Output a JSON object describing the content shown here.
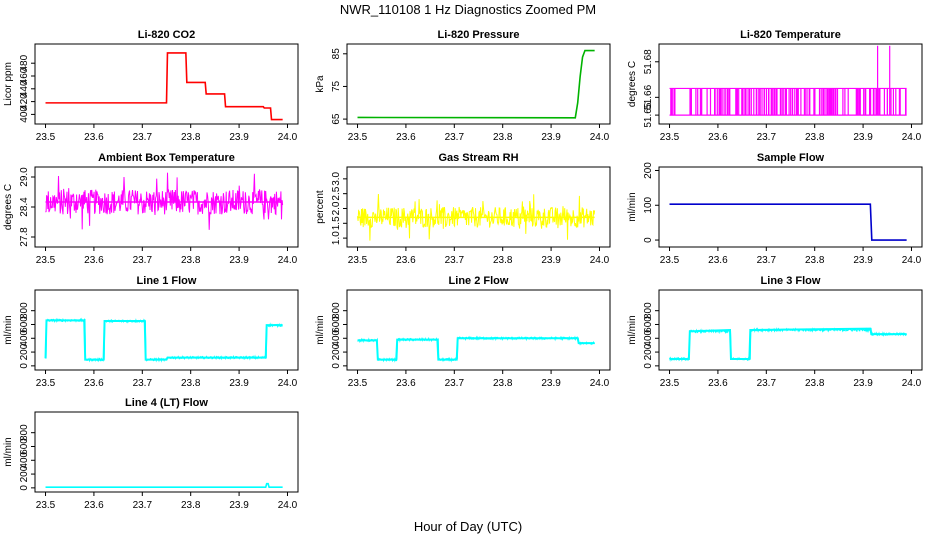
{
  "figure": {
    "title": "NWR_110108  1 Hz Diagnostics Zoomed PM",
    "xlabel": "Hour of Day (UTC)"
  },
  "chart_data": [
    {
      "type": "line",
      "title": "Li-820 CO2",
      "ylabel": "Licor ppm",
      "color": "#ff0000",
      "xlim": [
        23.5,
        24.0
      ],
      "xticks": [
        "23.5",
        "23.6",
        "23.7",
        "23.8",
        "23.9",
        "24.0"
      ],
      "ylim": [
        385,
        510
      ],
      "yticks": [
        "400",
        "420",
        "440",
        "460",
        "480"
      ],
      "x": [
        23.5,
        23.75,
        23.752,
        23.79,
        23.792,
        23.83,
        23.832,
        23.87,
        23.872,
        23.95,
        23.952,
        23.965,
        23.967,
        23.99
      ],
      "values": [
        418,
        418,
        496,
        496,
        450,
        450,
        432,
        432,
        412,
        412,
        410,
        410,
        392,
        392
      ]
    },
    {
      "type": "line",
      "title": "Li-820 Pressure",
      "ylabel": "kPa",
      "color": "#00b300",
      "xlim": [
        23.5,
        24.0
      ],
      "xticks": [
        "23.5",
        "23.6",
        "23.7",
        "23.8",
        "23.9",
        "24.0"
      ],
      "ylim": [
        63.5,
        88
      ],
      "yticks": [
        "65",
        "75",
        "85"
      ],
      "x": [
        23.5,
        23.95,
        23.955,
        23.96,
        23.965,
        23.97,
        23.99
      ],
      "values": [
        65.5,
        65.4,
        70,
        78,
        84,
        86,
        86
      ]
    },
    {
      "type": "line",
      "title": "Li-820 Temperature",
      "ylabel": "degrees C",
      "color": "#ff00ff",
      "xlim": [
        23.5,
        24.0
      ],
      "xticks": [
        "23.5",
        "23.6",
        "23.7",
        "23.8",
        "23.9",
        "24.0"
      ],
      "ylim": [
        51.645,
        51.69
      ],
      "yticks": [
        "51.65",
        "51.66",
        "51.68"
      ],
      "x": [
        23.5,
        23.99
      ],
      "values": [
        51.665,
        51.665
      ]
    },
    {
      "type": "line",
      "title": "Ambient Box Temperature",
      "ylabel": "degrees C",
      "color": "#ff00ff",
      "xlim": [
        23.5,
        24.0
      ],
      "xticks": [
        "23.5",
        "23.6",
        "23.7",
        "23.8",
        "23.9",
        "24.0"
      ],
      "ylim": [
        27.6,
        29.2
      ],
      "yticks": [
        "27.8",
        "28.4",
        "29.0"
      ],
      "x": [
        23.5,
        23.99
      ],
      "values": [
        28.5,
        28.5
      ]
    },
    {
      "type": "line",
      "title": "Gas Stream RH",
      "ylabel": "percent",
      "color": "#ffff00",
      "xlim": [
        23.5,
        24.0
      ],
      "xticks": [
        "23.5",
        "23.6",
        "23.7",
        "23.8",
        "23.9",
        "24.0"
      ],
      "ylim": [
        0.7,
        3.4
      ],
      "yticks": [
        "1.0",
        "1.5",
        "2.0",
        "2.5",
        "3.0"
      ],
      "x": [
        23.5,
        23.99
      ],
      "values": [
        1.7,
        1.7
      ]
    },
    {
      "type": "line",
      "title": "Sample Flow",
      "ylabel": "ml/min",
      "color": "#0000cc",
      "xlim": [
        23.5,
        24.0
      ],
      "xticks": [
        "23.5",
        "23.6",
        "23.7",
        "23.8",
        "23.9",
        "24.0"
      ],
      "ylim": [
        -20,
        210
      ],
      "yticks": [
        "0",
        "100",
        "200"
      ],
      "x": [
        23.5,
        23.915,
        23.918,
        23.99
      ],
      "values": [
        103,
        103,
        0,
        0
      ]
    },
    {
      "type": "line",
      "title": "Line 1 Flow",
      "ylabel": "ml/min",
      "color": "#00ffff",
      "xlim": [
        23.5,
        24.0
      ],
      "xticks": [
        "23.5",
        "23.6",
        "23.7",
        "23.8",
        "23.9",
        "24.0"
      ],
      "ylim": [
        -60,
        1100
      ],
      "yticks": [
        "0",
        "200",
        "400",
        "600",
        "800"
      ],
      "x": [
        23.5,
        23.502,
        23.58,
        23.582,
        23.62,
        23.622,
        23.705,
        23.707,
        23.75,
        23.752,
        23.955,
        23.957,
        23.99
      ],
      "values": [
        110,
        660,
        660,
        90,
        90,
        650,
        650,
        90,
        90,
        120,
        120,
        590,
        590
      ]
    },
    {
      "type": "line",
      "title": "Line 2 Flow",
      "ylabel": "ml/min",
      "color": "#00ffff",
      "xlim": [
        23.5,
        24.0
      ],
      "xticks": [
        "23.5",
        "23.6",
        "23.7",
        "23.8",
        "23.9",
        "24.0"
      ],
      "ylim": [
        -60,
        1100
      ],
      "yticks": [
        "0",
        "200",
        "400",
        "600",
        "800"
      ],
      "x": [
        23.5,
        23.54,
        23.542,
        23.58,
        23.582,
        23.665,
        23.667,
        23.705,
        23.707,
        23.955,
        23.957,
        23.99
      ],
      "values": [
        370,
        370,
        90,
        90,
        380,
        380,
        90,
        90,
        400,
        400,
        330,
        330
      ]
    },
    {
      "type": "line",
      "title": "Line 3 Flow",
      "ylabel": "ml/min",
      "color": "#00ffff",
      "xlim": [
        23.5,
        24.0
      ],
      "xticks": [
        "23.5",
        "23.6",
        "23.7",
        "23.8",
        "23.9",
        "24.0"
      ],
      "ylim": [
        -60,
        1100
      ],
      "yticks": [
        "0",
        "200",
        "400",
        "600",
        "800"
      ],
      "x": [
        23.5,
        23.502,
        23.54,
        23.542,
        23.625,
        23.627,
        23.665,
        23.667,
        23.915,
        23.917,
        23.99
      ],
      "values": [
        100,
        100,
        100,
        500,
        520,
        100,
        100,
        520,
        540,
        460,
        460
      ]
    },
    {
      "type": "line",
      "title": "Line 4 (LT) Flow",
      "ylabel": "ml/min",
      "color": "#00ffff",
      "xlim": [
        23.5,
        24.0
      ],
      "xticks": [
        "23.5",
        "23.6",
        "23.7",
        "23.8",
        "23.9",
        "24.0"
      ],
      "ylim": [
        -60,
        1100
      ],
      "yticks": [
        "0",
        "200",
        "400",
        "600",
        "800"
      ],
      "x": [
        23.5,
        23.955,
        23.957,
        23.96,
        23.962,
        23.99
      ],
      "values": [
        10,
        10,
        60,
        60,
        10,
        10
      ]
    }
  ]
}
